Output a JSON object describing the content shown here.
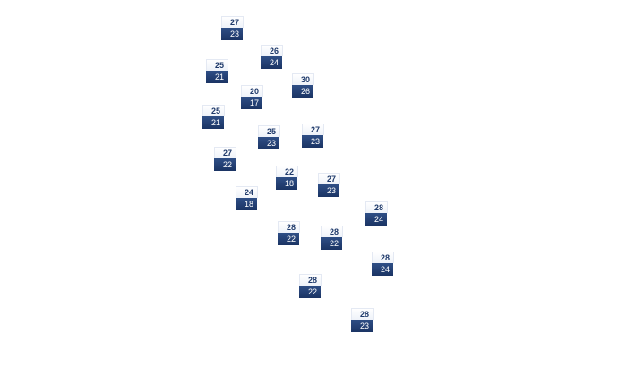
{
  "markers": [
    {
      "high": "27",
      "low": "23"
    },
    {
      "high": "26",
      "low": "24"
    },
    {
      "high": "25",
      "low": "21"
    },
    {
      "high": "30",
      "low": "26"
    },
    {
      "high": "20",
      "low": "17"
    },
    {
      "high": "25",
      "low": "21"
    },
    {
      "high": "25",
      "low": "23"
    },
    {
      "high": "27",
      "low": "23"
    },
    {
      "high": "27",
      "low": "22"
    },
    {
      "high": "22",
      "low": "18"
    },
    {
      "high": "27",
      "low": "23"
    },
    {
      "high": "24",
      "low": "18"
    },
    {
      "high": "28",
      "low": "24"
    },
    {
      "high": "28",
      "low": "22"
    },
    {
      "high": "28",
      "low": "22"
    },
    {
      "high": "28",
      "low": "24"
    },
    {
      "high": "28",
      "low": "22"
    },
    {
      "high": "28",
      "low": "23"
    }
  ],
  "colors": {
    "high_text": "#1f3a6b",
    "low_bg": "#22396b",
    "low_text": "#ffffff"
  }
}
